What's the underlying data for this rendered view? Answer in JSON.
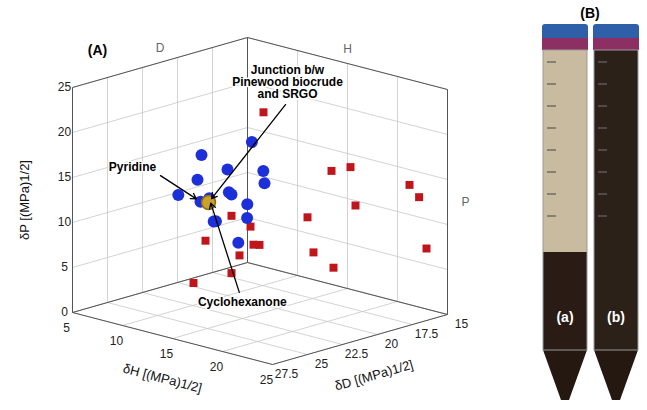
{
  "chart_data": {
    "type": "scatter3d",
    "panel": "(A)",
    "xlabel": "δH [(MPa)1/2]",
    "ylabel": "δP [(MPa)1/2]",
    "zlabel": "δD [(MPa)1/2]",
    "xlim": [
      5,
      25
    ],
    "xticks": [
      5,
      10,
      15,
      20,
      25
    ],
    "ylim": [
      0,
      25
    ],
    "yticks": [
      0,
      5,
      10,
      15,
      20,
      25
    ],
    "zlim": [
      15,
      27.5
    ],
    "zticks": [
      15,
      17.5,
      20,
      22.5,
      25,
      27.5
    ],
    "grid": true,
    "wall_labels": [
      "D",
      "H",
      "P"
    ],
    "series": [
      {
        "color": "#c0161b",
        "marker": "square",
        "values": [
          {
            "x": 8,
            "y": 18,
            "z": 16
          },
          {
            "x": 16,
            "y": 14,
            "z": 15.5
          },
          {
            "x": 22.3,
            "y": 12.3,
            "z": 15.1
          },
          {
            "x": 25,
            "y": 8,
            "z": 16.5
          },
          {
            "x": 24,
            "y": 15,
            "z": 17
          },
          {
            "x": 20,
            "y": 12,
            "z": 18
          },
          {
            "x": 18,
            "y": 11,
            "z": 20
          },
          {
            "x": 14,
            "y": 6.5,
            "z": 22
          },
          {
            "x": 16,
            "y": 6,
            "z": 24
          },
          {
            "x": 15,
            "y": 5.5,
            "z": 26
          },
          {
            "x": 9,
            "y": 4,
            "z": 17
          },
          {
            "x": 7,
            "y": 3,
            "z": 16
          },
          {
            "x": 6,
            "y": 4.5,
            "z": 15.5
          },
          {
            "x": 5.5,
            "y": 6,
            "z": 16.5
          },
          {
            "x": 22,
            "y": 7,
            "z": 21
          },
          {
            "x": 12,
            "y": 8,
            "z": 23
          },
          {
            "x": 16.5,
            "y": 6,
            "z": 18.5
          },
          {
            "x": 19,
            "y": 16,
            "z": 19
          }
        ]
      },
      {
        "color": "#1c2fd8",
        "marker": "circle",
        "values": [
          {
            "x": 7.2,
            "y": 12.3,
            "z": 18
          },
          {
            "x": 10.5,
            "y": 13,
            "z": 17.8
          },
          {
            "x": 9,
            "y": 10.5,
            "z": 19
          },
          {
            "x": 10.2,
            "y": 16.4,
            "z": 18.4
          },
          {
            "x": 9.5,
            "y": 11,
            "z": 17
          },
          {
            "x": 7,
            "y": 12,
            "z": 20
          },
          {
            "x": 10,
            "y": 8,
            "z": 18.6
          },
          {
            "x": 6.5,
            "y": 9.3,
            "z": 17.4
          },
          {
            "x": 8,
            "y": 7.4,
            "z": 19.4
          },
          {
            "x": 6.1,
            "y": 6.3,
            "z": 18.2
          },
          {
            "x": 8,
            "y": 4.3,
            "z": 17.8
          },
          {
            "x": 5.5,
            "y": 10,
            "z": 20.3
          },
          {
            "x": 7.5,
            "y": 8,
            "z": 16.8
          },
          {
            "x": 6,
            "y": 14,
            "z": 19
          },
          {
            "x": 5.9,
            "y": 8.8,
            "z": 19,
            "label": "Pyridine"
          },
          {
            "x": 5.1,
            "y": 8.4,
            "z": 17.8,
            "label": "Cyclohexanone"
          }
        ]
      },
      {
        "color": "#c9a227",
        "marker": "circle",
        "values": [
          {
            "x": 6,
            "y": 8.5,
            "z": 18.5,
            "label": "Junction b/w Pinewood biocrude and SRGO"
          }
        ]
      }
    ]
  },
  "photo": {
    "panel": "(B)",
    "tubes": [
      "(a)",
      "(b)"
    ]
  }
}
